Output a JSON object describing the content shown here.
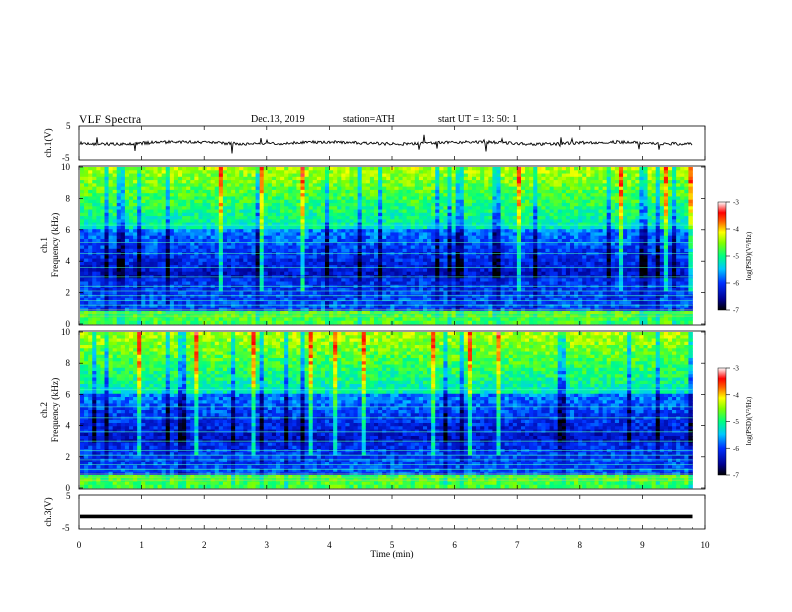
{
  "header": {
    "title": "VLF  Spectra",
    "date": "Dec.13, 2019",
    "station": "station=ATH",
    "start": "start  UT  =    13: 50: 1"
  },
  "chart_data": [
    {
      "type": "line",
      "panel": "ch1-waveform",
      "ylabel": "ch.1(V)",
      "ylim": [
        -5,
        5
      ],
      "yticks": [
        "5",
        "-5"
      ],
      "x_range_min": [
        0,
        9.8
      ],
      "approx_level": 0,
      "color": "#000000"
    },
    {
      "type": "heatmap",
      "panel": "ch1-spectrogram",
      "ylabel": "ch.1\nFrequency (kHz)",
      "ylim": [
        0,
        10
      ],
      "yticks": [
        "0",
        "2",
        "4",
        "6",
        "8",
        "10"
      ],
      "colorbar": {
        "label": "log(PSD)(V²/Hz)",
        "range": [
          -7,
          -3
        ],
        "ticks": [
          "-3",
          "-4",
          "-5",
          "-6",
          "-7"
        ]
      }
    },
    {
      "type": "heatmap",
      "panel": "ch2-spectrogram",
      "ylabel": "ch.2\nFrequency (kHz)",
      "ylim": [
        0,
        10
      ],
      "yticks": [
        "0",
        "2",
        "4",
        "6",
        "8",
        "10"
      ],
      "colorbar": {
        "label": "log(PSD)(V²/Hz)",
        "range": [
          -7,
          -3
        ],
        "ticks": [
          "-3",
          "-4",
          "-5",
          "-6",
          "-7"
        ]
      }
    },
    {
      "type": "line",
      "panel": "ch3-waveform",
      "ylabel": "ch.3(V)",
      "ylim": [
        -5,
        5
      ],
      "yticks": [
        "5",
        "-5"
      ],
      "approx_level": -1.3,
      "color": "#000000"
    }
  ],
  "xaxis": {
    "label": "Time  (min)",
    "range": [
      0,
      10
    ],
    "ticks": [
      "0",
      "1",
      "2",
      "3",
      "4",
      "5",
      "6",
      "7",
      "8",
      "9",
      "10"
    ]
  }
}
